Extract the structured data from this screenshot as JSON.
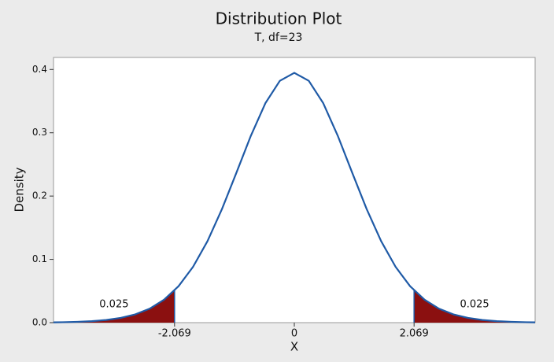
{
  "chart_data": {
    "type": "area-distribution",
    "title": "Distribution Plot",
    "subtitle": "T, df=23",
    "x_label": "X",
    "y_label": "Density",
    "xlim": [
      -4.16,
      4.16
    ],
    "ylim": [
      0,
      0.419
    ],
    "xticks": [
      -2.069,
      0,
      2.069
    ],
    "yticks": [
      {
        "value": 0,
        "label": "0.0"
      },
      0.1,
      0.2,
      0.3,
      0.4
    ],
    "curve": {
      "color": "#1f5aa6",
      "x": [
        -4.16,
        -4,
        -3.75,
        -3.5,
        -3.25,
        -3,
        -2.75,
        -2.5,
        -2.25,
        -2,
        -1.75,
        -1.5,
        -1.25,
        -1,
        -0.75,
        -0.5,
        -0.25,
        0,
        0.25,
        0.5,
        0.75,
        1,
        1.25,
        1.5,
        1.75,
        2,
        2.25,
        2.5,
        2.75,
        3,
        3.25,
        3.5,
        3.75,
        4,
        4.16
      ],
      "values": [
        0.00047,
        0.0007,
        0.00129,
        0.00235,
        0.00423,
        0.00751,
        0.01302,
        0.02205,
        0.03626,
        0.0576,
        0.0881,
        0.1288,
        0.1794,
        0.2369,
        0.2954,
        0.3467,
        0.3821,
        0.3947,
        0.3821,
        0.3467,
        0.2954,
        0.2369,
        0.1794,
        0.1288,
        0.0881,
        0.0576,
        0.03626,
        0.02205,
        0.01302,
        0.00751,
        0.00423,
        0.00235,
        0.00129,
        0.0007,
        0.00047
      ]
    },
    "shaded_regions": [
      {
        "label": "0.025",
        "color": "#8b1010",
        "x": [
          -4.16,
          -4,
          -3.75,
          -3.5,
          -3.25,
          -3,
          -2.75,
          -2.5,
          -2.25,
          -2.069
        ],
        "values": [
          0.00047,
          0.0007,
          0.00129,
          0.00235,
          0.00423,
          0.00751,
          0.01302,
          0.02205,
          0.03626,
          0.0509
        ]
      },
      {
        "label": "0.025",
        "color": "#8b1010",
        "x": [
          2.069,
          2.25,
          2.5,
          2.75,
          3,
          3.25,
          3.5,
          3.75,
          4,
          4.16
        ],
        "values": [
          0.0509,
          0.03626,
          0.02205,
          0.01302,
          0.00751,
          0.00423,
          0.00235,
          0.00129,
          0.0007,
          0.00047
        ]
      }
    ]
  }
}
